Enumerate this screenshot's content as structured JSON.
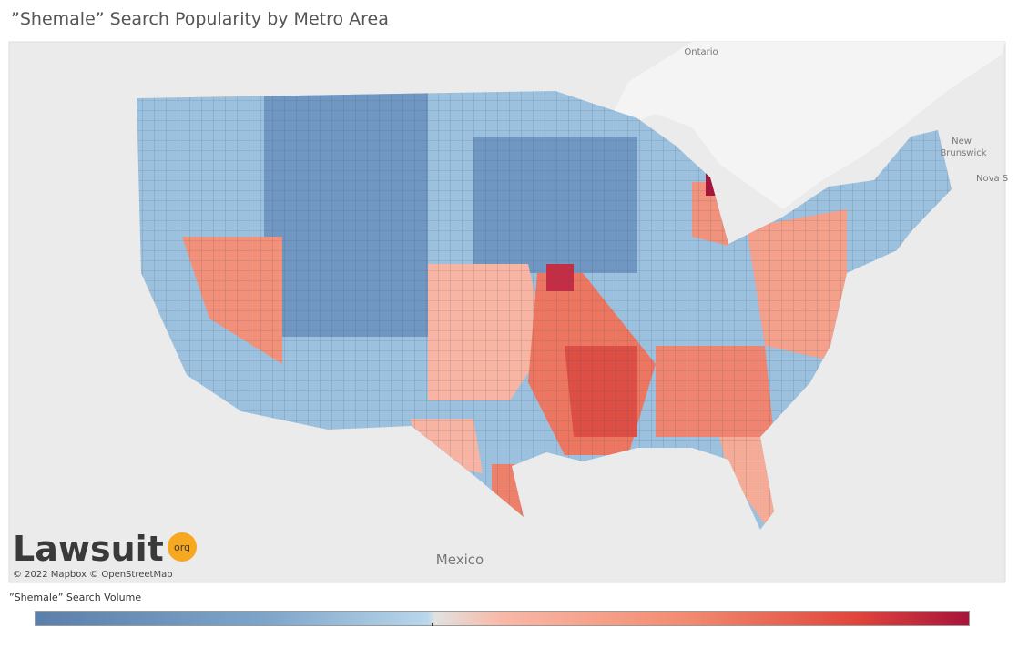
{
  "header": {
    "title": "”Shemale” Search Popularity by Metro Area"
  },
  "map": {
    "labels": [
      "Ontario",
      "New",
      "Brunswick",
      "Nova S",
      "Mexico"
    ],
    "attribution": "© 2022 Mapbox © OpenStreetMap",
    "logo": {
      "name": "Lawsuit",
      "suffix": "org"
    }
  },
  "legend": {
    "title": "”Shemale” Search Volume"
  }
}
